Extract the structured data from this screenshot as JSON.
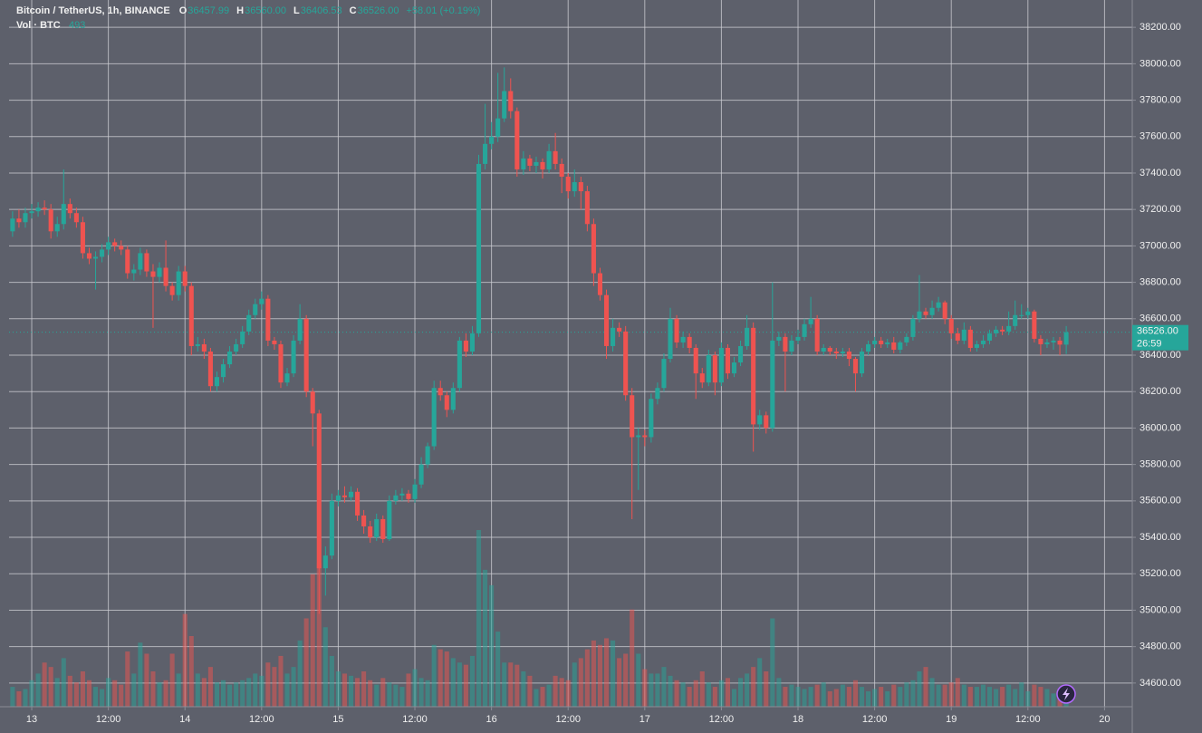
{
  "header": {
    "title": "Bitcoin / TetherUS, 1h, BINANCE",
    "fields": [
      {
        "label": "O",
        "value": "36457.99"
      },
      {
        "label": "H",
        "value": "36560.00"
      },
      {
        "label": "L",
        "value": "36406.53"
      },
      {
        "label": "C",
        "value": "36526.00"
      }
    ],
    "change": "+58.01 (+0.19%)",
    "volume_label": "Vol · BTC",
    "volume_value": "493",
    "price_tag": "36526.00",
    "countdown": "26:59"
  },
  "chart_data": {
    "type": "candlestick",
    "up_color": "#26a69a",
    "down_color": "#ef5350",
    "grid": true,
    "xlim": [
      -3.55,
      172.34
    ],
    "ylim": [
      34470,
      38350
    ],
    "y2lim": [
      0,
      32000
    ],
    "xticks": [
      {
        "value": 0,
        "label": "13"
      },
      {
        "value": 12,
        "label": "12:00"
      },
      {
        "value": 24,
        "label": "14"
      },
      {
        "value": 36,
        "label": "12:00"
      },
      {
        "value": 48,
        "label": "15"
      },
      {
        "value": 60,
        "label": "12:00"
      },
      {
        "value": 72,
        "label": "16"
      },
      {
        "value": 84,
        "label": "12:00"
      },
      {
        "value": 96,
        "label": "17"
      },
      {
        "value": 108,
        "label": "12:00"
      },
      {
        "value": 120,
        "label": "18"
      },
      {
        "value": 132,
        "label": "12:00"
      },
      {
        "value": 144,
        "label": "19"
      },
      {
        "value": 156,
        "label": "12:00"
      },
      {
        "value": 168,
        "label": "20"
      }
    ],
    "yticks": [
      {
        "value": 34600,
        "label": "34600.00"
      },
      {
        "value": 34800,
        "label": "34800.00"
      },
      {
        "value": 35000,
        "label": "35000.00"
      },
      {
        "value": 35200,
        "label": "35200.00"
      },
      {
        "value": 35400,
        "label": "35400.00"
      },
      {
        "value": 35600,
        "label": "35600.00"
      },
      {
        "value": 35800,
        "label": "35800.00"
      },
      {
        "value": 36000,
        "label": "36000.00"
      },
      {
        "value": 36200,
        "label": "36200.00"
      },
      {
        "value": 36400,
        "label": "36400.00"
      },
      {
        "value": 36600,
        "label": "36600.00"
      },
      {
        "value": 36800,
        "label": "36800.00"
      },
      {
        "value": 37000,
        "label": "37000.00"
      },
      {
        "value": 37200,
        "label": "37200.00"
      },
      {
        "value": 37400,
        "label": "37400.00"
      },
      {
        "value": 37600,
        "label": "37600.00"
      },
      {
        "value": 37800,
        "label": "37800.00"
      },
      {
        "value": 38000,
        "label": "38000.00"
      },
      {
        "value": 38200,
        "label": "38200.00"
      }
    ],
    "current_price": 36526,
    "x": [
      -3,
      -2,
      -1,
      0,
      1,
      2,
      3,
      4,
      5,
      6,
      7,
      8,
      9,
      10,
      11,
      12,
      13,
      14,
      15,
      16,
      17,
      18,
      19,
      20,
      21,
      22,
      23,
      24,
      25,
      26,
      27,
      28,
      29,
      30,
      31,
      32,
      33,
      34,
      35,
      36,
      37,
      38,
      39,
      40,
      41,
      42,
      43,
      44,
      45,
      46,
      47,
      48,
      49,
      50,
      51,
      52,
      53,
      54,
      55,
      56,
      57,
      58,
      59,
      60,
      61,
      62,
      63,
      64,
      65,
      66,
      67,
      68,
      69,
      70,
      71,
      72,
      73,
      74,
      75,
      76,
      77,
      78,
      79,
      80,
      81,
      82,
      83,
      84,
      85,
      86,
      87,
      88,
      89,
      90,
      91,
      92,
      93,
      94,
      95,
      96,
      97,
      98,
      99,
      100,
      101,
      102,
      103,
      104,
      105,
      106,
      107,
      108,
      109,
      110,
      111,
      112,
      113,
      114,
      115,
      116,
      117,
      118,
      119,
      120,
      121,
      122,
      123,
      124,
      125,
      126,
      127,
      128,
      129,
      130,
      131,
      132,
      133,
      134,
      135,
      136,
      137,
      138,
      139,
      140,
      141,
      142,
      143,
      144,
      145,
      146,
      147,
      148,
      149,
      150,
      151,
      152,
      153,
      154,
      155,
      156,
      157,
      158,
      159,
      160,
      161,
      162
    ],
    "ohlc": [
      [
        37080,
        37190,
        37050,
        37150
      ],
      [
        37150,
        37200,
        37100,
        37130
      ],
      [
        37130,
        37210,
        37100,
        37180
      ],
      [
        37180,
        37230,
        37150,
        37190
      ],
      [
        37190,
        37240,
        37160,
        37210
      ],
      [
        37210,
        37250,
        37170,
        37200
      ],
      [
        37200,
        37230,
        37040,
        37080
      ],
      [
        37080,
        37160,
        37050,
        37120
      ],
      [
        37120,
        37420,
        37090,
        37230
      ],
      [
        37230,
        37260,
        37150,
        37180
      ],
      [
        37180,
        37210,
        37100,
        37130
      ],
      [
        37130,
        37160,
        36930,
        36960
      ],
      [
        36960,
        36990,
        36900,
        36930
      ],
      [
        36930,
        36970,
        36760,
        36940
      ],
      [
        36940,
        37010,
        36910,
        36980
      ],
      [
        36980,
        37050,
        36950,
        37020
      ],
      [
        37020,
        37040,
        36970,
        37000
      ],
      [
        37000,
        37030,
        36950,
        36980
      ],
      [
        36980,
        37000,
        36820,
        36850
      ],
      [
        36850,
        36900,
        36810,
        36870
      ],
      [
        36870,
        36990,
        36840,
        36960
      ],
      [
        36960,
        36980,
        36830,
        36860
      ],
      [
        36860,
        36900,
        36550,
        36830
      ],
      [
        36830,
        36910,
        36800,
        36880
      ],
      [
        36880,
        37030,
        36750,
        36780
      ],
      [
        36780,
        36800,
        36700,
        36730
      ],
      [
        36730,
        36890,
        36700,
        36860
      ],
      [
        36860,
        36890,
        36750,
        36780
      ],
      [
        36780,
        36800,
        36400,
        36450
      ],
      [
        36450,
        36500,
        36420,
        36460
      ],
      [
        36460,
        36490,
        36380,
        36420
      ],
      [
        36420,
        36440,
        36200,
        36230
      ],
      [
        36230,
        36310,
        36200,
        36280
      ],
      [
        36280,
        36380,
        36250,
        36350
      ],
      [
        36350,
        36450,
        36330,
        36420
      ],
      [
        36420,
        36490,
        36400,
        36460
      ],
      [
        36460,
        36560,
        36440,
        36530
      ],
      [
        36530,
        36650,
        36510,
        36620
      ],
      [
        36620,
        36710,
        36600,
        36680
      ],
      [
        36680,
        36750,
        36650,
        36710
      ],
      [
        36710,
        36730,
        36450,
        36480
      ],
      [
        36480,
        36500,
        36430,
        36460
      ],
      [
        36460,
        36480,
        36220,
        36250
      ],
      [
        36250,
        36330,
        36230,
        36300
      ],
      [
        36300,
        36510,
        36280,
        36480
      ],
      [
        36480,
        36680,
        36460,
        36600
      ],
      [
        36600,
        36620,
        36170,
        36200
      ],
      [
        36200,
        36220,
        35900,
        36080
      ],
      [
        36080,
        36100,
        34980,
        35230
      ],
      [
        35230,
        35350,
        35080,
        35300
      ],
      [
        35300,
        35640,
        35280,
        35600
      ],
      [
        35600,
        35660,
        35570,
        35630
      ],
      [
        35630,
        35680,
        35590,
        35620
      ],
      [
        35620,
        35680,
        35600,
        35650
      ],
      [
        35650,
        35670,
        35490,
        35520
      ],
      [
        35520,
        35550,
        35420,
        35460
      ],
      [
        35460,
        35490,
        35370,
        35400
      ],
      [
        35400,
        35530,
        35380,
        35500
      ],
      [
        35500,
        35520,
        35370,
        35390
      ],
      [
        35390,
        35630,
        35380,
        35600
      ],
      [
        35600,
        35660,
        35580,
        35630
      ],
      [
        35630,
        35670,
        35600,
        35640
      ],
      [
        35640,
        35660,
        35590,
        35610
      ],
      [
        35610,
        35720,
        35590,
        35690
      ],
      [
        35690,
        35840,
        35670,
        35800
      ],
      [
        35800,
        35920,
        35780,
        35900
      ],
      [
        35900,
        36260,
        35880,
        36220
      ],
      [
        36220,
        36260,
        36150,
        36180
      ],
      [
        36180,
        36200,
        36060,
        36100
      ],
      [
        36100,
        36250,
        36080,
        36220
      ],
      [
        36220,
        36500,
        36200,
        36480
      ],
      [
        36480,
        36520,
        36390,
        36420
      ],
      [
        36420,
        36560,
        36400,
        36520
      ],
      [
        36520,
        37500,
        36500,
        37450
      ],
      [
        37450,
        37780,
        37420,
        37560
      ],
      [
        37560,
        37680,
        37530,
        37600
      ],
      [
        37600,
        37950,
        37570,
        37700
      ],
      [
        37700,
        37980,
        37680,
        37850
      ],
      [
        37850,
        37920,
        37700,
        37740
      ],
      [
        37740,
        37760,
        37380,
        37420
      ],
      [
        37420,
        37520,
        37390,
        37480
      ],
      [
        37480,
        37500,
        37410,
        37440
      ],
      [
        37440,
        37490,
        37400,
        37460
      ],
      [
        37460,
        37480,
        37370,
        37420
      ],
      [
        37420,
        37560,
        37400,
        37520
      ],
      [
        37520,
        37620,
        37420,
        37450
      ],
      [
        37450,
        37480,
        37290,
        37380
      ],
      [
        37380,
        37400,
        37260,
        37300
      ],
      [
        37300,
        37420,
        37270,
        37350
      ],
      [
        37350,
        37380,
        37200,
        37300
      ],
      [
        37300,
        37330,
        37080,
        37120
      ],
      [
        37120,
        37150,
        36780,
        36850
      ],
      [
        36850,
        36880,
        36700,
        36730
      ],
      [
        36730,
        36760,
        36380,
        36450
      ],
      [
        36450,
        36600,
        36420,
        36550
      ],
      [
        36550,
        36580,
        36500,
        36530
      ],
      [
        36530,
        36560,
        36150,
        36180
      ],
      [
        36180,
        36220,
        35500,
        35950
      ],
      [
        35950,
        36000,
        35660,
        35960
      ],
      [
        35960,
        35990,
        35900,
        35950
      ],
      [
        35950,
        36190,
        35920,
        36160
      ],
      [
        36160,
        36250,
        36130,
        36220
      ],
      [
        36220,
        36410,
        36200,
        36380
      ],
      [
        36380,
        36660,
        36360,
        36600
      ],
      [
        36600,
        36620,
        36440,
        36470
      ],
      [
        36470,
        36530,
        36440,
        36500
      ],
      [
        36500,
        36520,
        36410,
        36440
      ],
      [
        36440,
        36460,
        36160,
        36300
      ],
      [
        36300,
        36330,
        36220,
        36250
      ],
      [
        36250,
        36430,
        36230,
        36400
      ],
      [
        36400,
        36420,
        36180,
        36250
      ],
      [
        36250,
        36470,
        36230,
        36440
      ],
      [
        36440,
        36460,
        36270,
        36300
      ],
      [
        36300,
        36390,
        36280,
        36360
      ],
      [
        36360,
        36480,
        36340,
        36450
      ],
      [
        36450,
        36620,
        36430,
        36550
      ],
      [
        36550,
        36580,
        35870,
        36020
      ],
      [
        36020,
        36100,
        35990,
        36070
      ],
      [
        36070,
        36090,
        35970,
        36000
      ],
      [
        36000,
        36800,
        35980,
        36480
      ],
      [
        36480,
        36530,
        36450,
        36500
      ],
      [
        36500,
        36520,
        36200,
        36420
      ],
      [
        36420,
        36510,
        36400,
        36480
      ],
      [
        36480,
        36540,
        36460,
        36500
      ],
      [
        36500,
        36600,
        36480,
        36570
      ],
      [
        36570,
        36720,
        36550,
        36600
      ],
      [
        36600,
        36620,
        36400,
        36420
      ],
      [
        36420,
        36460,
        36400,
        36440
      ],
      [
        36440,
        36450,
        36400,
        36420
      ],
      [
        36420,
        36440,
        36380,
        36410
      ],
      [
        36410,
        36440,
        36390,
        36420
      ],
      [
        36420,
        36440,
        36340,
        36380
      ],
      [
        36380,
        36390,
        36200,
        36300
      ],
      [
        36300,
        36440,
        36280,
        36420
      ],
      [
        36420,
        36480,
        36400,
        36460
      ],
      [
        36460,
        36500,
        36440,
        36480
      ],
      [
        36480,
        36500,
        36440,
        36460
      ],
      [
        36460,
        36490,
        36440,
        36470
      ],
      [
        36470,
        36500,
        36410,
        36430
      ],
      [
        36430,
        36480,
        36410,
        36470
      ],
      [
        36470,
        36520,
        36450,
        36500
      ],
      [
        36500,
        36620,
        36480,
        36600
      ],
      [
        36600,
        36840,
        36580,
        36640
      ],
      [
        36640,
        36660,
        36600,
        36620
      ],
      [
        36620,
        36700,
        36600,
        36660
      ],
      [
        36660,
        36720,
        36640,
        36690
      ],
      [
        36690,
        36700,
        36570,
        36600
      ],
      [
        36600,
        36620,
        36490,
        36520
      ],
      [
        36520,
        36550,
        36460,
        36480
      ],
      [
        36480,
        36580,
        36460,
        36540
      ],
      [
        36540,
        36560,
        36420,
        36440
      ],
      [
        36440,
        36480,
        36420,
        36460
      ],
      [
        36460,
        36510,
        36440,
        36480
      ],
      [
        36480,
        36540,
        36460,
        36520
      ],
      [
        36520,
        36560,
        36500,
        36540
      ],
      [
        36540,
        36560,
        36510,
        36530
      ],
      [
        36530,
        36640,
        36510,
        36560
      ],
      [
        36560,
        36700,
        36540,
        36620
      ],
      [
        36620,
        36680,
        36600,
        36620
      ],
      [
        36620,
        36660,
        36600,
        36640
      ],
      [
        36640,
        36650,
        36470,
        36490
      ],
      [
        36490,
        36510,
        36400,
        36460
      ],
      [
        36460,
        36490,
        36440,
        36470
      ],
      [
        36470,
        36500,
        36430,
        36480
      ],
      [
        36480,
        36500,
        36400,
        36457.99
      ],
      [
        36457.99,
        36560,
        36406.53,
        36526
      ]
    ],
    "volume": [
      900,
      700,
      800,
      1200,
      1500,
      2000,
      1800,
      1300,
      2200,
      1400,
      1100,
      1600,
      1200,
      900,
      800,
      1300,
      1200,
      1000,
      2500,
      1500,
      2900,
      2400,
      1600,
      1100,
      1200,
      2400,
      1500,
      4200,
      3200,
      1500,
      1300,
      1800,
      1100,
      1200,
      1000,
      1100,
      1200,
      1300,
      1500,
      1400,
      2000,
      1800,
      2300,
      1500,
      1800,
      3000,
      4000,
      6000,
      6500,
      3600,
      2300,
      1600,
      1500,
      1400,
      1300,
      1600,
      1200,
      1000,
      1300,
      1100,
      1000,
      900,
      1500,
      1700,
      1300,
      1200,
      2800,
      2600,
      2500,
      2200,
      2000,
      1900,
      2300,
      8000,
      6200,
      5500,
      3400,
      2000,
      2000,
      1900,
      1600,
      1400,
      800,
      900,
      1000,
      1400,
      1300,
      1200,
      2000,
      2200,
      2600,
      3000,
      2800,
      3100,
      3000,
      2200,
      2400,
      4400,
      2400,
      1700,
      1500,
      1500,
      1800,
      1400,
      1200,
      1100,
      900,
      1200,
      1600,
      1100,
      900,
      1200,
      1300,
      800,
      1300,
      1500,
      1800,
      2200,
      1600,
      4000,
      1300,
      900,
      1000,
      900,
      800,
      900,
      1000,
      1100,
      700,
      800,
      1000,
      900,
      1200,
      900,
      700,
      800,
      900,
      700,
      1000,
      900,
      1100,
      1200,
      1600,
      1800,
      1300,
      1000,
      1000,
      1100,
      1300,
      1000,
      900,
      900,
      1000,
      900,
      800,
      900,
      1000,
      800,
      1100,
      700,
      1000,
      900,
      800,
      600,
      700,
      493
    ]
  }
}
